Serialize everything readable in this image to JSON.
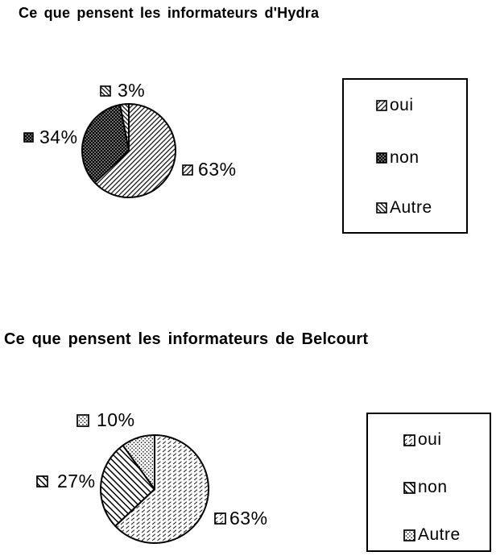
{
  "colors": {
    "foreground": "#000000",
    "background": "#ffffff"
  },
  "chart_data": [
    {
      "type": "pie",
      "title": "Ce que pensent les informateurs d'Hydra",
      "categories": [
        "oui",
        "non",
        "Autre"
      ],
      "values": [
        63,
        34,
        3
      ],
      "labels": [
        "63%",
        "34%",
        "3%"
      ],
      "patterns": [
        "hatch-diagonal-up",
        "dots-white-on-black",
        "hatch-diagonal-down-dense"
      ],
      "legend_position": "right",
      "start_angle_deg": -90,
      "direction": "clockwise"
    },
    {
      "type": "pie",
      "title": "Ce que pensent les informateurs de Belcourt",
      "categories": [
        "oui",
        "non",
        "Autre"
      ],
      "values": [
        63,
        27,
        10
      ],
      "labels": [
        "63%",
        "27%",
        "10%"
      ],
      "patterns": [
        "hatch-diagonal-up-fine",
        "hatch-diagonal-down",
        "dots-black-on-white"
      ],
      "legend_position": "right",
      "start_angle_deg": -90,
      "direction": "clockwise"
    }
  ]
}
